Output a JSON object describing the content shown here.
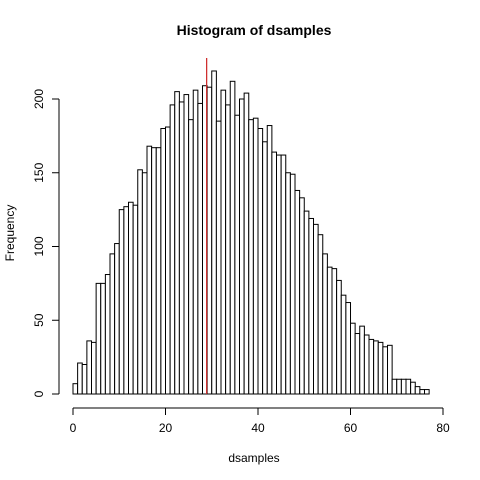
{
  "chart_data": {
    "type": "bar",
    "title": "Histogram of dsamples",
    "xlabel": "dsamples",
    "ylabel": "Frequency",
    "xlim": [
      0,
      80
    ],
    "ylim": [
      0,
      220
    ],
    "x_ticks": [
      0,
      20,
      40,
      60,
      80
    ],
    "y_ticks": [
      0,
      50,
      100,
      150,
      200
    ],
    "bin_start": 0,
    "bin_width": 1,
    "values": [
      7,
      21,
      20,
      36,
      35,
      75,
      75,
      81,
      95,
      102,
      125,
      127,
      130,
      128,
      152,
      150,
      168,
      167,
      167,
      180,
      181,
      196,
      205,
      198,
      203,
      186,
      206,
      197,
      209,
      208,
      219,
      185,
      206,
      196,
      212,
      189,
      200,
      204,
      186,
      187,
      180,
      171,
      182,
      164,
      162,
      162,
      150,
      149,
      138,
      133,
      124,
      119,
      115,
      108,
      95,
      86,
      85,
      77,
      67,
      62,
      48,
      41,
      46,
      40,
      37,
      36,
      35,
      32,
      33,
      10,
      10,
      10,
      10,
      8,
      5,
      3,
      3,
      0,
      0,
      0
    ],
    "vline": {
      "x": 28.9,
      "color": "#cc2222"
    },
    "colors": {
      "bar_fill": "#ffffff",
      "bar_stroke": "#000000"
    }
  }
}
